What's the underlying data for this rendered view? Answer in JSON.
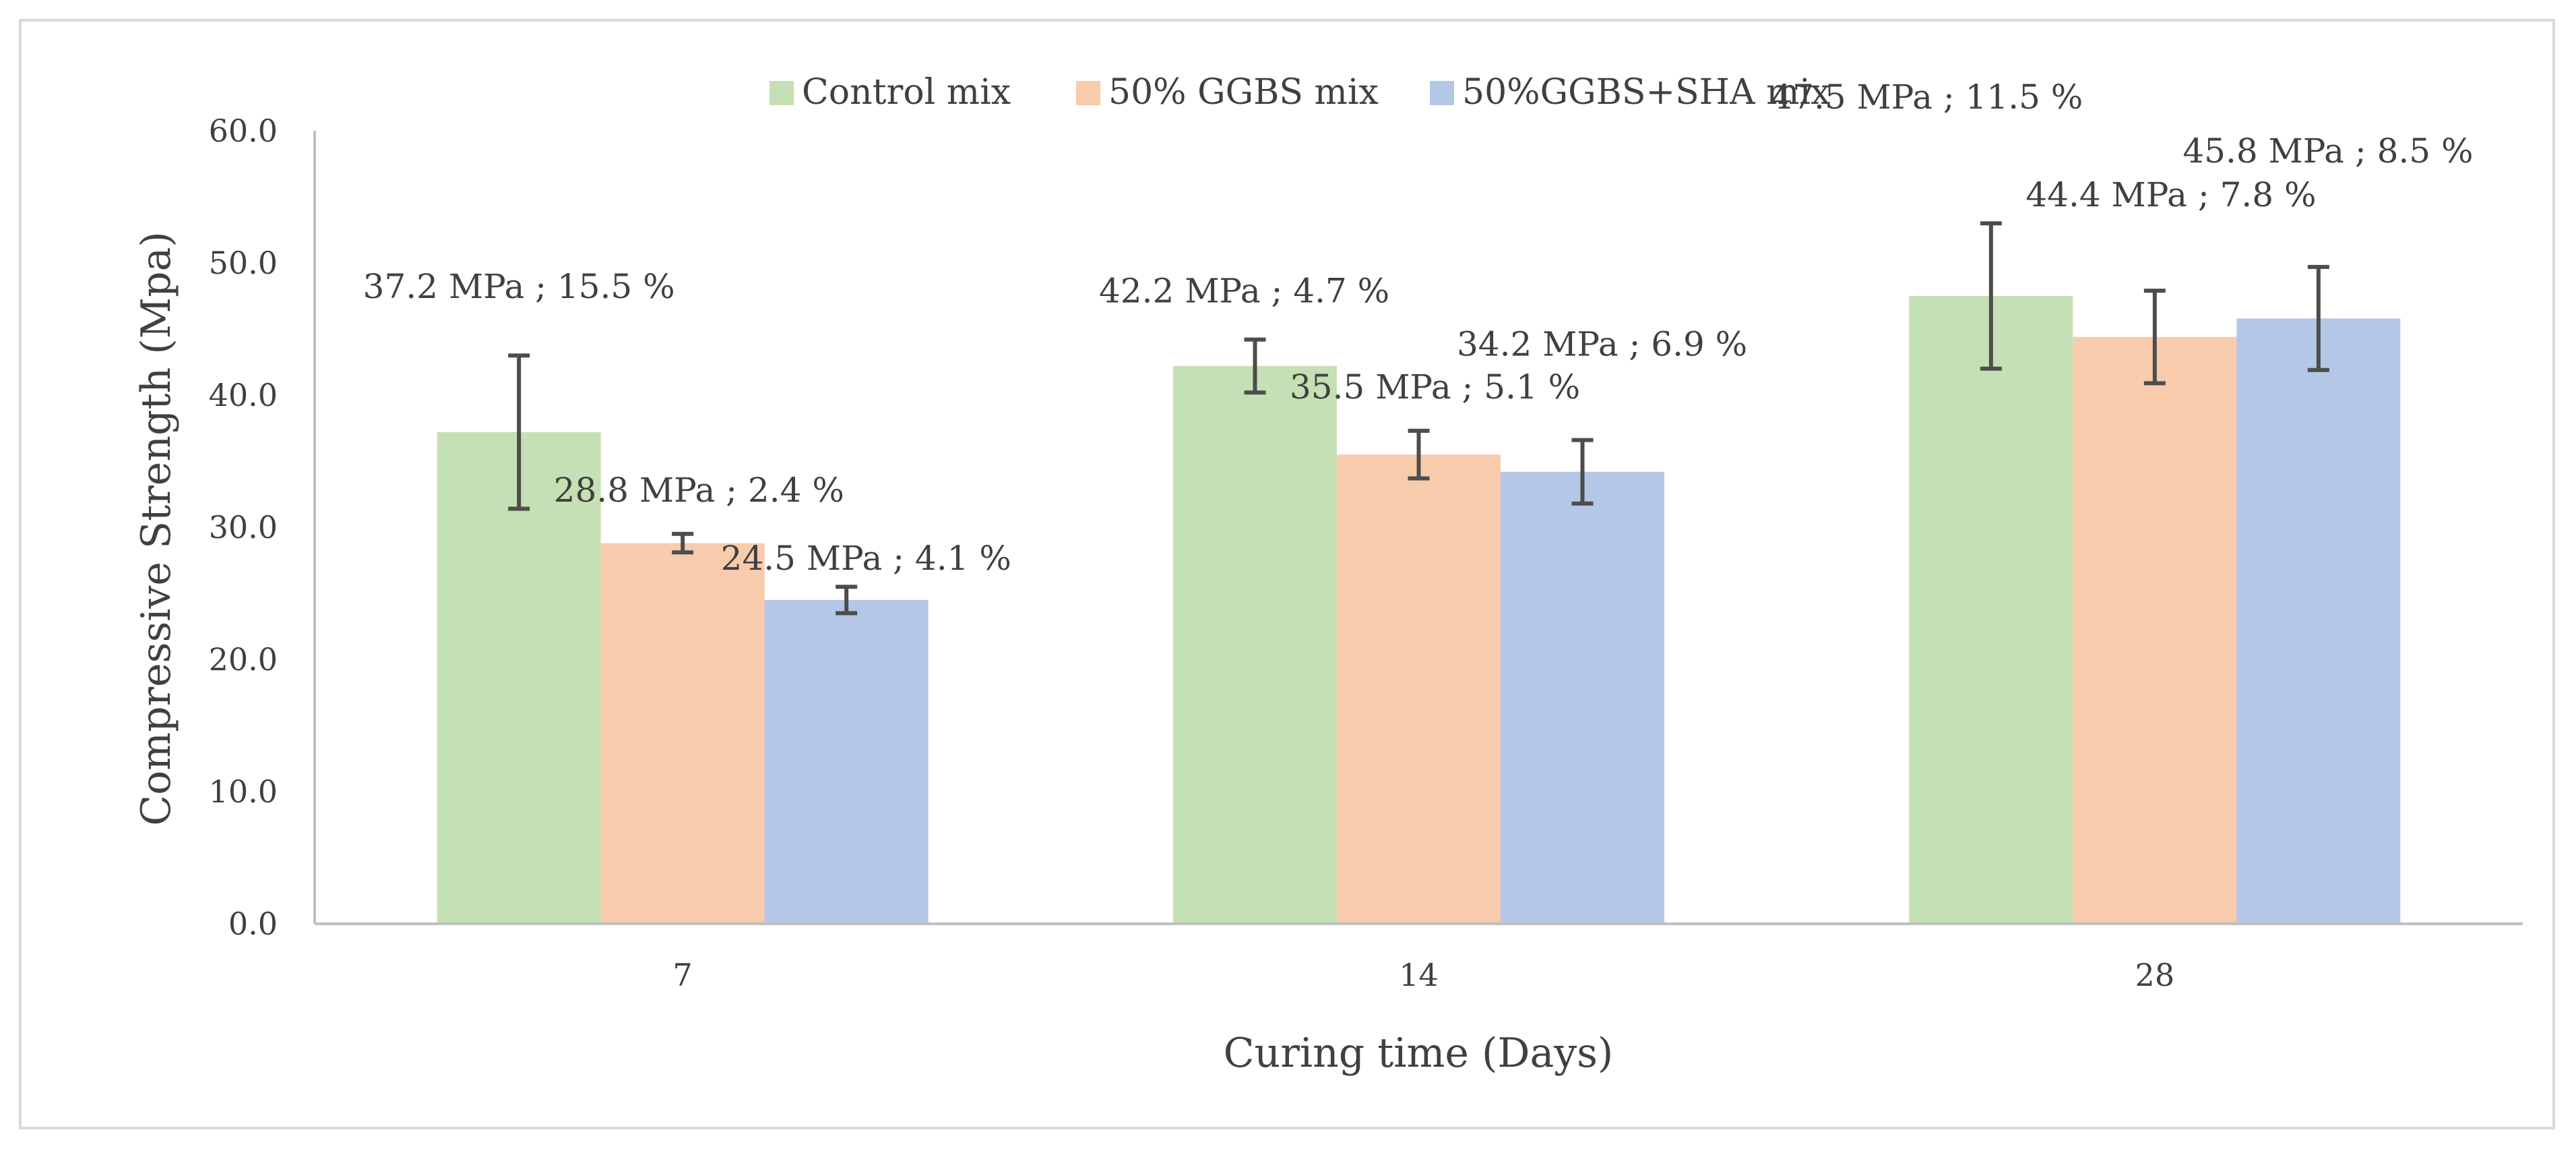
{
  "chart_data": {
    "type": "bar",
    "title": "",
    "xlabel": "Curing time (Days)",
    "ylabel": "Compressive Strength (Mpa)",
    "ylim": [
      0,
      60
    ],
    "yticks": [
      "0.0",
      "10.0",
      "20.0",
      "30.0",
      "40.0",
      "50.0",
      "60.0"
    ],
    "categories": [
      "7",
      "14",
      "28"
    ],
    "legend_position": "top-center",
    "grid": false,
    "series": [
      {
        "name": "Control mix",
        "color": "#c5e0b4",
        "values": [
          37.2,
          42.2,
          47.5
        ],
        "error": [
          5.8,
          2.0,
          5.5
        ],
        "labels": [
          "37.2 MPa ; 15.5 %",
          "42.2 MPa ; 4.7 %",
          "47.5 MPa ; 11.5 %"
        ]
      },
      {
        "name": "50% GGBS mix",
        "color": "#f8cbad",
        "values": [
          28.8,
          35.5,
          44.4
        ],
        "error": [
          0.7,
          1.8,
          3.5
        ],
        "labels": [
          "28.8 MPa ; 2.4 %",
          "35.5 MPa ; 5.1 %",
          "44.4 MPa ; 7.8 %"
        ]
      },
      {
        "name": "50%GGBS+SHA mix",
        "color": "#b4c7e7",
        "values": [
          24.5,
          34.2,
          45.8
        ],
        "error": [
          1.0,
          2.4,
          3.9
        ],
        "labels": [
          "24.5 MPa ; 4.1 %",
          "34.2 MPa ; 6.9 %",
          "45.8 MPa ; 8.5 %"
        ]
      }
    ]
  }
}
